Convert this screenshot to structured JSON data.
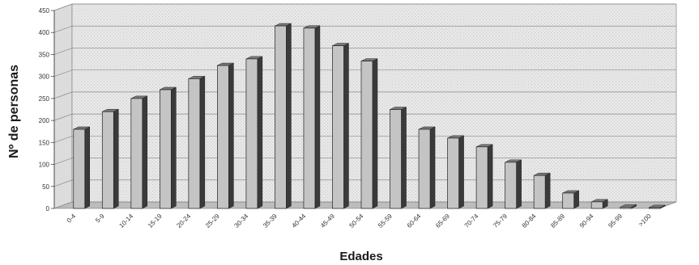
{
  "chart_data": {
    "type": "bar",
    "title": "",
    "xlabel": "Edades",
    "ylabel": "Nº de personas",
    "ylim": [
      0,
      450
    ],
    "yticks": [
      0,
      50,
      100,
      150,
      200,
      250,
      300,
      350,
      400,
      450
    ],
    "grid": true,
    "legend": "none",
    "categories": [
      "0-4",
      "5-9",
      "10-14",
      "15-19",
      "20-24",
      "25-29",
      "30-34",
      "35-39",
      "40-44",
      "45-49",
      "50-54",
      "55-59",
      "60-64",
      "65-69",
      "70-74",
      "75-79",
      "80-84",
      "85-89",
      "90-94",
      "95-99",
      ">100"
    ],
    "values": [
      180,
      220,
      250,
      270,
      295,
      325,
      340,
      415,
      410,
      370,
      335,
      225,
      180,
      160,
      140,
      105,
      75,
      35,
      15,
      3,
      2
    ],
    "colors": {
      "bar_front": "#c4c4c4",
      "bar_side": "#3a3a3a",
      "bar_top": "#7a7a7a",
      "plot_bg": "#e4e4e4",
      "grid": "#8a8a8a"
    }
  }
}
